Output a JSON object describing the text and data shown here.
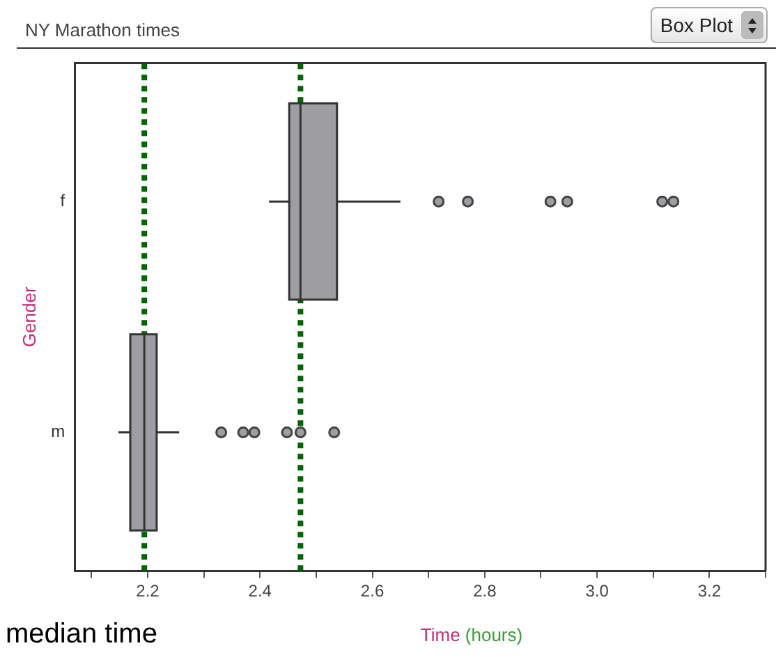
{
  "chart_data": {
    "type": "box",
    "title": "NY Marathon times",
    "xlabel": "Time (hours)",
    "ylabel": "Gender",
    "orientation": "horizontal",
    "categories": [
      "f",
      "m"
    ],
    "series": [
      {
        "color": "#9e9ea2",
        "boxes": [
          {
            "low": 2.416,
            "q1": 2.452,
            "median": 2.472,
            "q3": 2.537,
            "high": 2.65,
            "outliers": [
              2.718,
              2.77,
              2.917,
              2.947,
              3.116,
              3.136
            ]
          },
          {
            "low": 2.148,
            "q1": 2.169,
            "median": 2.194,
            "q3": 2.216,
            "high": 2.256,
            "outliers": [
              2.331,
              2.37,
              2.39,
              2.448,
              2.472,
              2.532
            ]
          }
        ]
      }
    ],
    "xlim": [
      2.07,
      3.3
    ],
    "xticks": [
      {
        "value": 2.1,
        "label": null
      },
      2.2,
      {
        "value": 2.3,
        "label": null
      },
      2.4,
      {
        "value": 2.5,
        "label": null
      },
      2.6,
      {
        "value": 2.7,
        "label": null
      },
      2.8,
      {
        "value": 2.9,
        "label": null
      },
      {
        "value": 3.0,
        "label": "3.0"
      },
      {
        "value": 3.1,
        "label": null
      },
      3.2,
      {
        "value": 3.3,
        "label": null
      }
    ],
    "ref_lines": [
      {
        "axis": "x",
        "value": 2.194,
        "color": "#006400",
        "line_style": "dotted"
      },
      {
        "axis": "x",
        "value": 2.472,
        "color": "#006400",
        "line_style": "dotted"
      }
    ],
    "grid": false,
    "legend": false,
    "annotations": [
      "Box Plot",
      "median time"
    ]
  }
}
